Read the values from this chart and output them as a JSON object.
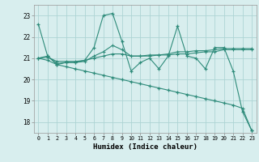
{
  "xlabel": "Humidex (Indice chaleur)",
  "x": [
    0,
    1,
    2,
    3,
    4,
    5,
    6,
    7,
    8,
    9,
    10,
    11,
    12,
    13,
    14,
    15,
    16,
    17,
    18,
    19,
    20,
    21,
    22,
    23
  ],
  "line1": [
    22.6,
    21.1,
    20.7,
    20.8,
    20.8,
    20.9,
    21.5,
    23.0,
    23.1,
    21.8,
    20.4,
    20.8,
    21.0,
    20.5,
    21.1,
    22.5,
    21.1,
    21.0,
    20.5,
    21.5,
    21.5,
    20.4,
    18.5,
    17.6
  ],
  "line2": [
    21.0,
    21.1,
    20.75,
    20.8,
    20.8,
    20.85,
    21.1,
    21.3,
    21.6,
    21.4,
    21.1,
    21.1,
    21.1,
    21.15,
    21.2,
    21.3,
    21.3,
    21.35,
    21.35,
    21.4,
    21.45,
    21.45,
    21.45,
    21.45
  ],
  "line3": [
    21.0,
    21.05,
    20.85,
    20.85,
    20.85,
    20.9,
    21.0,
    21.1,
    21.2,
    21.2,
    21.1,
    21.1,
    21.15,
    21.15,
    21.15,
    21.2,
    21.2,
    21.25,
    21.3,
    21.3,
    21.4,
    21.4,
    21.4,
    21.4
  ],
  "line4": [
    21.0,
    20.9,
    20.7,
    20.6,
    20.5,
    20.4,
    20.3,
    20.2,
    20.1,
    20.0,
    19.9,
    19.8,
    19.7,
    19.6,
    19.5,
    19.4,
    19.3,
    19.2,
    19.1,
    19.0,
    18.9,
    18.8,
    18.65,
    17.6
  ],
  "color": "#2e8b7a",
  "bg_color": "#d8eeee",
  "grid_color": "#aed4d4",
  "ylim": [
    17.5,
    23.5
  ],
  "yticks": [
    18,
    19,
    20,
    21,
    22,
    23
  ],
  "xticks": [
    0,
    1,
    2,
    3,
    4,
    5,
    6,
    7,
    8,
    9,
    10,
    11,
    12,
    13,
    14,
    15,
    16,
    17,
    18,
    19,
    20,
    21,
    22,
    23
  ]
}
